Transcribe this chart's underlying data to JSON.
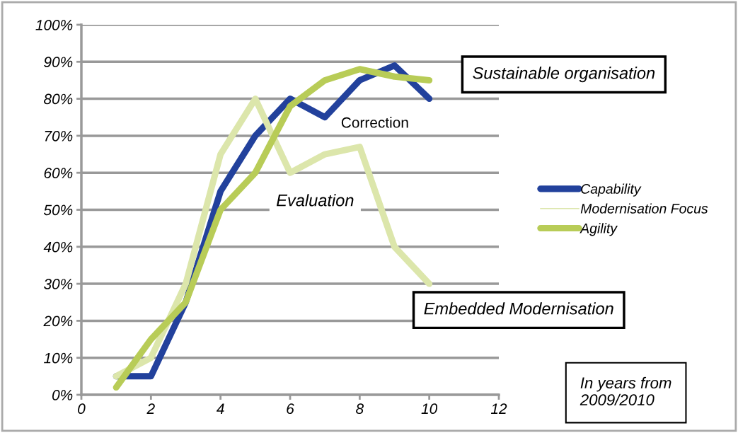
{
  "chart_data": {
    "type": "line",
    "x": [
      1,
      2,
      3,
      4,
      5,
      6,
      7,
      8,
      9,
      10
    ],
    "series": [
      {
        "name": "Capability",
        "color": "#22419c",
        "values": [
          0.05,
          0.05,
          0.25,
          0.55,
          0.7,
          0.8,
          0.75,
          0.85,
          0.89,
          0.8
        ]
      },
      {
        "name": "Modernisation Focus",
        "color": "#dce6ab",
        "values": [
          0.05,
          0.1,
          0.3,
          0.65,
          0.8,
          0.6,
          0.65,
          0.67,
          0.4,
          0.3
        ]
      },
      {
        "name": "Agility",
        "color": "#b8cc57",
        "values": [
          0.02,
          0.15,
          0.25,
          0.5,
          0.6,
          0.78,
          0.85,
          0.88,
          0.86,
          0.85
        ]
      }
    ],
    "xlim": [
      0,
      12
    ],
    "xticks": [
      0,
      2,
      4,
      6,
      8,
      10,
      12
    ],
    "ylim": [
      0,
      1
    ],
    "yticks": [
      {
        "value": 0,
        "label": "0%"
      },
      {
        "value": 0.1,
        "label": "10%"
      },
      {
        "value": 0.2,
        "label": "20%"
      },
      {
        "value": 0.3,
        "label": "30%"
      },
      {
        "value": 0.4,
        "label": "40%"
      },
      {
        "value": 0.5,
        "label": "50%"
      },
      {
        "value": 0.6,
        "label": "60%"
      },
      {
        "value": 0.7,
        "label": "70%"
      },
      {
        "value": 0.8,
        "label": "80%"
      },
      {
        "value": 0.9,
        "label": "90%"
      },
      {
        "value": 1,
        "label": "100%"
      }
    ],
    "grid": "y",
    "legend": "right",
    "marker": "none",
    "line_style": "solid",
    "annotations": [
      "Correction",
      "Evaluation",
      "Sustainable organisation",
      "Embedded Modernisation",
      "In years from 2009/2010"
    ]
  }
}
